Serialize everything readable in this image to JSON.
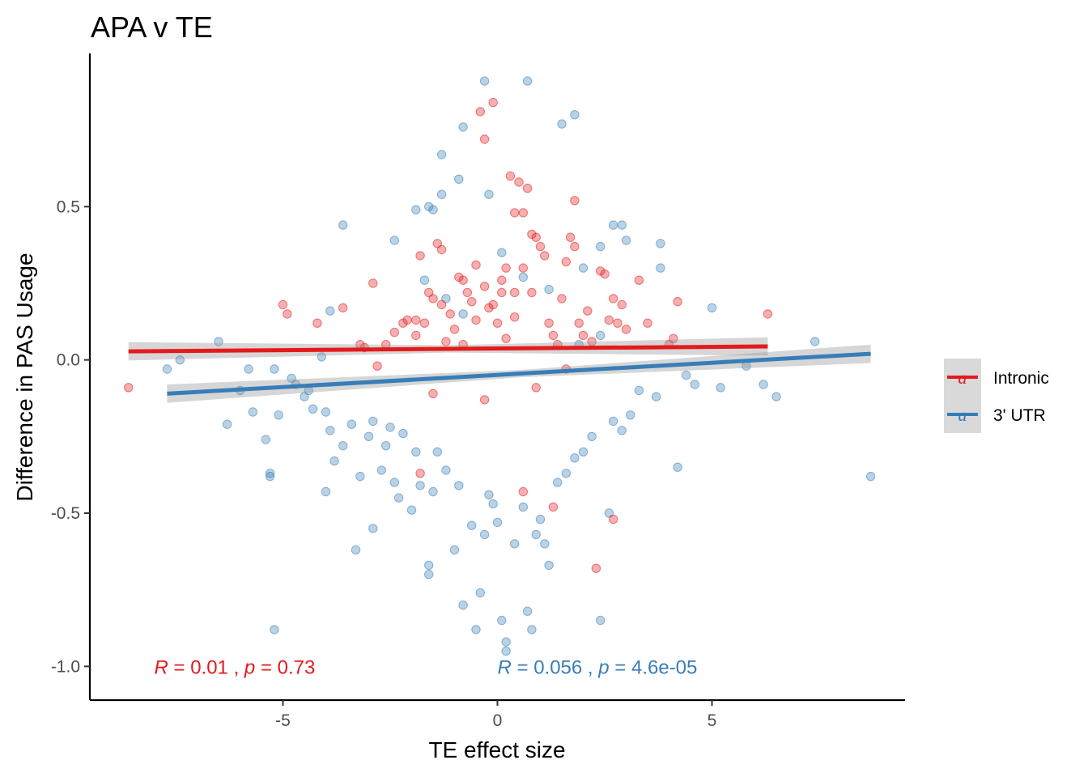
{
  "chart_data": {
    "type": "scatter",
    "title": "APA v TE",
    "xlabel": "TE effect size",
    "ylabel": "Difference in PAS Usage",
    "xlim": [
      -9.5,
      9.5
    ],
    "ylim": [
      -1.11,
      1.0
    ],
    "x_ticks": [
      -5,
      0,
      5
    ],
    "x_tick_labels": [
      "-5",
      "0",
      "5"
    ],
    "y_ticks": [
      -1.0,
      -0.5,
      0.0,
      0.5
    ],
    "y_tick_labels": [
      "-1.0",
      "-0.5",
      "0.0",
      "0.5"
    ],
    "grid": false,
    "legend_position": "right",
    "series": [
      {
        "name": "Intronic",
        "color": "#e41a1c",
        "fit": {
          "x": [
            -8.6,
            6.3
          ],
          "y": [
            0.028,
            0.044
          ],
          "ci_halfwidth": [
            0.03,
            0.012,
            0.03
          ]
        },
        "annotation": {
          "r_symbol": "R",
          "r_value": " = 0.01 , ",
          "p_symbol": "p",
          "p_value": " = 0.73"
        },
        "annotation_anchor": {
          "x": -8.0,
          "y": -1.0
        },
        "points": [
          [
            -8.6,
            -0.09
          ],
          [
            -5.0,
            0.18
          ],
          [
            -4.9,
            0.15
          ],
          [
            -4.2,
            0.12
          ],
          [
            -3.6,
            0.17
          ],
          [
            -3.2,
            0.05
          ],
          [
            -2.9,
            0.25
          ],
          [
            -2.6,
            0.05
          ],
          [
            -2.4,
            0.09
          ],
          [
            -2.2,
            0.12
          ],
          [
            -2.1,
            0.13
          ],
          [
            -1.9,
            0.08
          ],
          [
            -1.9,
            0.13
          ],
          [
            -1.8,
            0.34
          ],
          [
            -1.7,
            0.12
          ],
          [
            -1.6,
            0.22
          ],
          [
            -1.5,
            0.2
          ],
          [
            -1.5,
            -0.11
          ],
          [
            -1.4,
            0.38
          ],
          [
            -1.3,
            0.36
          ],
          [
            -1.3,
            0.18
          ],
          [
            -1.2,
            0.06
          ],
          [
            -1.1,
            0.15
          ],
          [
            -1.0,
            0.1
          ],
          [
            -0.9,
            0.27
          ],
          [
            -0.8,
            0.26
          ],
          [
            -0.8,
            0.05
          ],
          [
            -0.7,
            0.22
          ],
          [
            -0.6,
            0.19
          ],
          [
            -0.5,
            0.13
          ],
          [
            -0.4,
            0.81
          ],
          [
            -0.3,
            0.72
          ],
          [
            -0.3,
            0.24
          ],
          [
            -0.2,
            0.17
          ],
          [
            -0.1,
            0.84
          ],
          [
            -0.1,
            0.18
          ],
          [
            0.0,
            0.12
          ],
          [
            0.1,
            0.22
          ],
          [
            0.2,
            0.07
          ],
          [
            0.3,
            0.6
          ],
          [
            0.4,
            0.48
          ],
          [
            0.4,
            0.14
          ],
          [
            0.5,
            0.58
          ],
          [
            0.6,
            0.48
          ],
          [
            0.6,
            0.3
          ],
          [
            0.7,
            0.56
          ],
          [
            0.8,
            0.41
          ],
          [
            0.8,
            0.22
          ],
          [
            0.9,
            0.4
          ],
          [
            1.0,
            0.37
          ],
          [
            1.1,
            0.34
          ],
          [
            1.2,
            0.12
          ],
          [
            1.3,
            0.08
          ],
          [
            1.4,
            0.05
          ],
          [
            1.5,
            0.2
          ],
          [
            1.6,
            0.32
          ],
          [
            1.7,
            0.4
          ],
          [
            1.8,
            0.37
          ],
          [
            1.8,
            0.52
          ],
          [
            1.9,
            0.12
          ],
          [
            2.0,
            0.08
          ],
          [
            2.1,
            0.16
          ],
          [
            2.2,
            0.06
          ],
          [
            2.4,
            0.29
          ],
          [
            2.5,
            0.28
          ],
          [
            2.6,
            0.13
          ],
          [
            2.7,
            0.2
          ],
          [
            2.8,
            0.12
          ],
          [
            2.9,
            0.18
          ],
          [
            3.0,
            0.1
          ],
          [
            3.3,
            0.26
          ],
          [
            3.5,
            0.12
          ],
          [
            4.0,
            0.05
          ],
          [
            4.1,
            0.07
          ],
          [
            4.2,
            0.19
          ],
          [
            6.3,
            0.15
          ],
          [
            1.3,
            -0.48
          ],
          [
            2.3,
            -0.68
          ],
          [
            2.7,
            -0.52
          ],
          [
            0.6,
            -0.43
          ],
          [
            -1.8,
            -0.37
          ],
          [
            -0.3,
            -0.13
          ],
          [
            0.9,
            -0.09
          ],
          [
            -3.1,
            0.04
          ],
          [
            -2.8,
            -0.02
          ],
          [
            1.6,
            -0.03
          ],
          [
            0.2,
            0.3
          ],
          [
            0.1,
            0.26
          ],
          [
            -0.5,
            0.31
          ],
          [
            0.4,
            0.22
          ]
        ]
      },
      {
        "name": "3' UTR",
        "color": "#377eb8",
        "fit": {
          "x": [
            -7.7,
            8.7
          ],
          "y": [
            -0.11,
            0.02
          ],
          "ci_halfwidth": [
            0.03,
            0.012,
            0.03
          ]
        },
        "annotation": {
          "r_symbol": "R",
          "r_value": " = 0.056 , ",
          "p_symbol": "p",
          "p_value": " = 4.6e-05"
        },
        "annotation_anchor": {
          "x": 0.0,
          "y": -1.0
        },
        "points": [
          [
            -0.3,
            0.91
          ],
          [
            0.7,
            0.91
          ],
          [
            1.8,
            0.8
          ],
          [
            -0.8,
            0.76
          ],
          [
            1.5,
            0.77
          ],
          [
            -1.3,
            0.67
          ],
          [
            -0.9,
            0.59
          ],
          [
            -1.3,
            0.54
          ],
          [
            -0.2,
            0.54
          ],
          [
            -1.9,
            0.49
          ],
          [
            -1.6,
            0.5
          ],
          [
            -1.5,
            0.49
          ],
          [
            -3.6,
            0.44
          ],
          [
            2.7,
            0.44
          ],
          [
            2.9,
            0.44
          ],
          [
            3.0,
            0.39
          ],
          [
            -2.4,
            0.39
          ],
          [
            2.4,
            0.37
          ],
          [
            3.8,
            0.38
          ],
          [
            3.8,
            0.3
          ],
          [
            2.0,
            0.3
          ],
          [
            -6.3,
            -0.21
          ],
          [
            -5.7,
            -0.17
          ],
          [
            -5.4,
            -0.26
          ],
          [
            -5.3,
            -0.37
          ],
          [
            -5.3,
            -0.38
          ],
          [
            -5.1,
            -0.18
          ],
          [
            -5.2,
            -0.03
          ],
          [
            -4.8,
            -0.06
          ],
          [
            -4.7,
            -0.08
          ],
          [
            -4.5,
            -0.12
          ],
          [
            -4.4,
            -0.1
          ],
          [
            -4.3,
            -0.16
          ],
          [
            -4.0,
            -0.43
          ],
          [
            -4.0,
            -0.17
          ],
          [
            -3.9,
            -0.23
          ],
          [
            -3.8,
            -0.33
          ],
          [
            -3.6,
            -0.28
          ],
          [
            -3.4,
            -0.21
          ],
          [
            -3.2,
            -0.38
          ],
          [
            -3.0,
            -0.25
          ],
          [
            -2.9,
            -0.55
          ],
          [
            -2.9,
            -0.2
          ],
          [
            -2.7,
            -0.36
          ],
          [
            -2.6,
            -0.28
          ],
          [
            -2.5,
            -0.22
          ],
          [
            -2.4,
            -0.4
          ],
          [
            -2.3,
            -0.45
          ],
          [
            -2.2,
            -0.24
          ],
          [
            -2.0,
            -0.49
          ],
          [
            -1.9,
            -0.3
          ],
          [
            -1.8,
            -0.41
          ],
          [
            -1.6,
            -0.67
          ],
          [
            -1.6,
            -0.7
          ],
          [
            -1.5,
            -0.43
          ],
          [
            -1.4,
            -0.3
          ],
          [
            -1.2,
            -0.36
          ],
          [
            -1.0,
            -0.62
          ],
          [
            -0.9,
            -0.41
          ],
          [
            -0.8,
            -0.8
          ],
          [
            -0.6,
            -0.54
          ],
          [
            -0.5,
            -0.88
          ],
          [
            -0.4,
            -0.76
          ],
          [
            -0.3,
            -0.57
          ],
          [
            -0.2,
            -0.44
          ],
          [
            -0.1,
            -0.47
          ],
          [
            0.0,
            -0.53
          ],
          [
            0.1,
            -0.85
          ],
          [
            0.2,
            -0.95
          ],
          [
            0.2,
            -0.92
          ],
          [
            0.4,
            -0.6
          ],
          [
            0.6,
            -0.48
          ],
          [
            0.7,
            -0.82
          ],
          [
            0.8,
            -0.88
          ],
          [
            0.9,
            -0.57
          ],
          [
            1.0,
            -0.52
          ],
          [
            1.1,
            -0.6
          ],
          [
            1.2,
            -0.67
          ],
          [
            1.4,
            -0.4
          ],
          [
            1.6,
            -0.37
          ],
          [
            1.8,
            -0.32
          ],
          [
            2.0,
            -0.3
          ],
          [
            2.2,
            -0.25
          ],
          [
            2.4,
            -0.85
          ],
          [
            2.6,
            -0.5
          ],
          [
            2.7,
            -0.2
          ],
          [
            2.9,
            -0.23
          ],
          [
            3.1,
            -0.18
          ],
          [
            3.3,
            -0.1
          ],
          [
            3.7,
            -0.12
          ],
          [
            4.2,
            -0.35
          ],
          [
            4.4,
            -0.05
          ],
          [
            4.6,
            -0.08
          ],
          [
            5.0,
            0.17
          ],
          [
            5.2,
            -0.09
          ],
          [
            5.8,
            -0.02
          ],
          [
            6.2,
            -0.08
          ],
          [
            6.5,
            -0.12
          ],
          [
            7.4,
            0.06
          ],
          [
            8.7,
            -0.38
          ],
          [
            -7.7,
            -0.03
          ],
          [
            -7.4,
            0.0
          ],
          [
            -6.5,
            0.06
          ],
          [
            -6.0,
            -0.1
          ],
          [
            -5.8,
            -0.03
          ],
          [
            -5.2,
            -0.88
          ],
          [
            -4.1,
            0.01
          ],
          [
            -3.9,
            0.16
          ],
          [
            -3.3,
            -0.62
          ],
          [
            -1.7,
            0.26
          ],
          [
            -1.2,
            0.2
          ],
          [
            1.9,
            0.05
          ],
          [
            2.4,
            0.08
          ],
          [
            0.6,
            0.27
          ],
          [
            -0.8,
            0.15
          ],
          [
            0.1,
            0.35
          ],
          [
            1.2,
            0.23
          ]
        ]
      }
    ]
  }
}
